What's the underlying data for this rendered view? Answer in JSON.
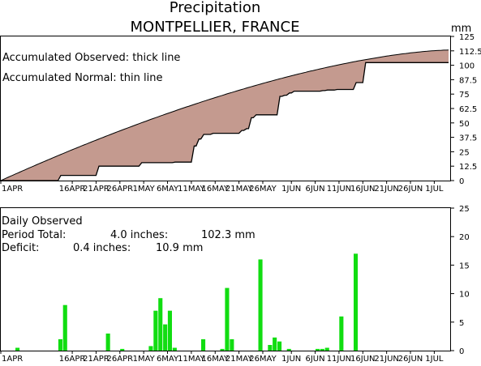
{
  "header": {
    "title": "Precipitation",
    "subtitle": "MONTPELLIER, FRANCE",
    "unit": "mm"
  },
  "top_panel": {
    "legend_observed": "Accumulated Observed: thick line",
    "legend_normal": "Accumulated Normal: thin line"
  },
  "bottom_panel": {
    "heading": "Daily Observed",
    "total_label": "Period Total:",
    "total_inches": "4.0 inches:",
    "total_mm": "102.3 mm",
    "deficit_label": "Deficit:",
    "deficit_inches": "0.4 inches:",
    "deficit_mm": "10.9 mm"
  },
  "colors": {
    "accumulated_fill": "#c49a8f",
    "daily_bar": "#11dd11",
    "frame": "#000000"
  },
  "chart_data": [
    {
      "type": "area",
      "name": "accumulated",
      "x_tick_labels": [
        "1APR",
        "16APR",
        "21APR",
        "26APR",
        "1MAY",
        "6MAY",
        "11MAY",
        "16MAY",
        "21MAY",
        "26MAY",
        "1JUN",
        "6JUN",
        "11JUN",
        "16JUN",
        "21JUN",
        "26JUN",
        "1JUL"
      ],
      "x_tick_days": [
        0,
        15,
        20,
        25,
        30,
        35,
        40,
        45,
        50,
        55,
        61,
        66,
        71,
        76,
        81,
        86,
        91
      ],
      "y_ticks": [
        "0",
        "12.5",
        "25",
        "37.5",
        "50",
        "62.5",
        "75",
        "87.5",
        "100",
        "112.5",
        "125"
      ],
      "ylim": [
        0,
        125
      ],
      "xlim": [
        0,
        94
      ],
      "normal_total": 113.2,
      "observed_steps": [
        {
          "day": 12,
          "value": 4.5
        },
        {
          "day": 20,
          "value": 12.5
        },
        {
          "day": 29,
          "value": 15.5
        },
        {
          "day": 36,
          "value": 16.0
        },
        {
          "day": 40,
          "value": 30.0
        },
        {
          "day": 41,
          "value": 36.0
        },
        {
          "day": 42,
          "value": 40.0
        },
        {
          "day": 44,
          "value": 41.0
        },
        {
          "day": 50,
          "value": 43.5
        },
        {
          "day": 51,
          "value": 45.0
        },
        {
          "day": 52,
          "value": 54.5
        },
        {
          "day": 53,
          "value": 57.0
        },
        {
          "day": 58,
          "value": 73.0
        },
        {
          "day": 59,
          "value": 74.0
        },
        {
          "day": 60,
          "value": 76.0
        },
        {
          "day": 61,
          "value": 77.5
        },
        {
          "day": 67,
          "value": 78.0
        },
        {
          "day": 68,
          "value": 78.5
        },
        {
          "day": 70,
          "value": 79.0
        },
        {
          "day": 74,
          "value": 85.0
        },
        {
          "day": 76,
          "value": 102.3
        }
      ],
      "observed_total": 102.3
    },
    {
      "type": "bar",
      "name": "daily",
      "x_tick_labels": [
        "1APR",
        "16APR",
        "21APR",
        "26APR",
        "1MAY",
        "6MAY",
        "11MAY",
        "16MAY",
        "21MAY",
        "26MAY",
        "1JUN",
        "6JUN",
        "11JUN",
        "16JUN",
        "21JUN",
        "26JUN",
        "1JUL"
      ],
      "x_tick_days": [
        0,
        15,
        20,
        25,
        30,
        35,
        40,
        45,
        50,
        55,
        61,
        66,
        71,
        76,
        81,
        86,
        91
      ],
      "y_ticks": [
        "0",
        "5",
        "10",
        "15",
        "20",
        "25"
      ],
      "ylim": [
        0,
        25
      ],
      "xlim": [
        0,
        94
      ],
      "days": [
        3,
        12,
        13,
        22,
        25,
        31,
        32,
        33,
        34,
        35,
        36,
        42,
        46,
        47,
        48,
        54,
        56,
        57,
        58,
        60,
        66,
        67,
        68,
        71,
        74
      ],
      "values": [
        0.5,
        2.0,
        8.0,
        3.0,
        0.3,
        0.8,
        7.0,
        9.2,
        4.6,
        7.0,
        0.5,
        2.0,
        0.3,
        11.0,
        2.0,
        16.0,
        1.0,
        2.3,
        1.6,
        0.3,
        0.3,
        0.3,
        0.5,
        6.0,
        17.0
      ]
    }
  ]
}
